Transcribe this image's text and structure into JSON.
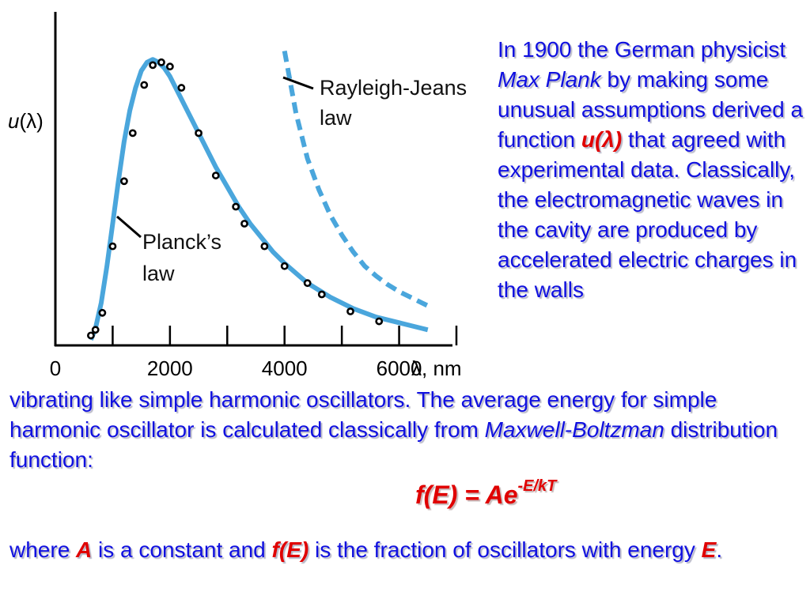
{
  "chart_data": {
    "type": "scatter",
    "x_ticks": [
      "0",
      "2000",
      "4000",
      "6000"
    ],
    "x_unit_label": "λ, nm",
    "y_label_italic": "u",
    "y_label_rest": "(λ)",
    "xlim": [
      0,
      7000
    ],
    "ylim": [
      0,
      1.1
    ],
    "series": [
      {
        "name": "Planck's law",
        "kind": "line",
        "color": "#4aa6dc",
        "x": [
          620,
          700,
          800,
          900,
          1000,
          1100,
          1200,
          1300,
          1400,
          1500,
          1600,
          1700,
          1800,
          1900,
          2000,
          2100,
          2200,
          2400,
          2600,
          2800,
          3000,
          3200,
          3400,
          3600,
          3800,
          4000,
          4400,
          4800,
          5200,
          5600,
          6000,
          6400,
          6500
        ],
        "y": [
          0.02,
          0.06,
          0.15,
          0.28,
          0.43,
          0.58,
          0.72,
          0.83,
          0.91,
          0.97,
          1.0,
          1.01,
          1.0,
          0.98,
          0.95,
          0.91,
          0.87,
          0.79,
          0.71,
          0.63,
          0.56,
          0.49,
          0.43,
          0.38,
          0.33,
          0.29,
          0.22,
          0.17,
          0.13,
          0.1,
          0.08,
          0.06,
          0.055
        ]
      },
      {
        "name": "Rayleigh-Jeans law",
        "kind": "dashed",
        "color": "#4aa6dc",
        "x": [
          4000,
          4200,
          4400,
          4600,
          4800,
          5000,
          5200,
          5400,
          5600,
          5800,
          6000,
          6200,
          6400,
          6500
        ],
        "y": [
          1.04,
          0.82,
          0.66,
          0.55,
          0.46,
          0.39,
          0.33,
          0.28,
          0.245,
          0.215,
          0.19,
          0.17,
          0.15,
          0.14
        ]
      },
      {
        "name": "experimental data",
        "kind": "points",
        "color": "#000000",
        "x": [
          620,
          700,
          820,
          1000,
          1200,
          1350,
          1550,
          1700,
          1850,
          2000,
          2200,
          2500,
          2800,
          3150,
          3300,
          3650,
          4000,
          4400,
          4650,
          5150,
          5650
        ],
        "y": [
          0.035,
          0.055,
          0.115,
          0.35,
          0.58,
          0.75,
          0.92,
          0.99,
          1.0,
          0.985,
          0.91,
          0.75,
          0.6,
          0.49,
          0.43,
          0.35,
          0.28,
          0.22,
          0.18,
          0.12,
          0.085
        ]
      }
    ]
  },
  "chart_labels": {
    "rayleigh_line1": "Rayleigh-Jeans",
    "rayleigh_line2": "law",
    "planck_line1": "Planck’s",
    "planck_line2": "law"
  },
  "text": {
    "right": {
      "p1": "In 1900 the German physicist ",
      "max_plank": "Max Plank",
      "p2": " by making some unusual assumptions derived a function ",
      "u_lambda": "u(λ)",
      "p3": " that agreed with experimental data. Classically, the electromagnetic waves in the cavity are produced by accelerated electric charges in the walls"
    },
    "bottom": {
      "p1": "vibrating like simple harmonic oscillators. The average energy for simple harmonic oscillator is calculated classically from ",
      "maxwell": "Maxwell-Boltzman",
      "p2": " distribution function:"
    },
    "formula": {
      "base": "f(E) = Ae",
      "exponent": "-E/kT"
    },
    "where": {
      "p1": " where ",
      "A": "A",
      "p2": " is a constant and ",
      "fE": "f(E)",
      "p3": " is the fraction of oscillators with energy ",
      "E": "E",
      "p4": "."
    },
    "colors": {
      "body_text": "#1010e0",
      "highlight": "#e00000",
      "curve": "#4aa6dc"
    }
  }
}
